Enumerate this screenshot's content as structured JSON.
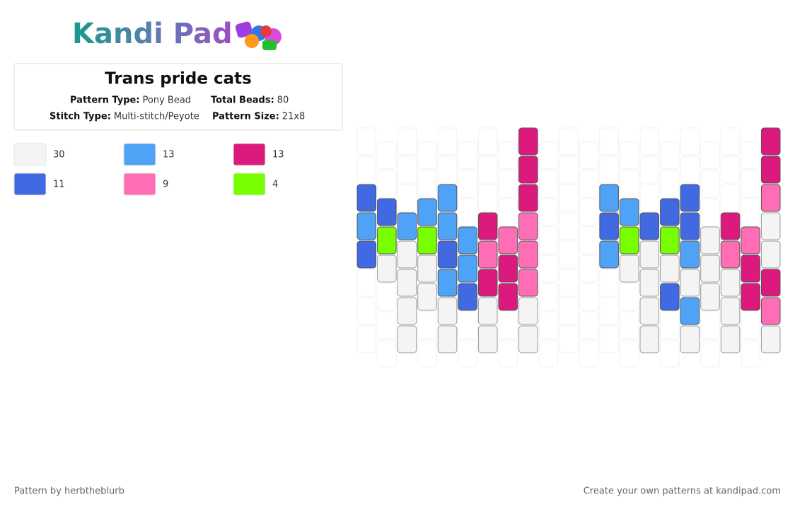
{
  "header": {
    "logo": "Kandi Pad",
    "title": "Trans pride cats"
  },
  "info": [
    {
      "label": "Pattern Type:",
      "value": "Pony Bead"
    },
    {
      "label": "Total Beads:",
      "value": "80"
    },
    {
      "label": "Stitch Type:",
      "value": "Multi-stitch/Peyote"
    },
    {
      "label": "Pattern Size:",
      "value": "21x8"
    }
  ],
  "palette": [
    {
      "color": "#f4f4f4",
      "count": 30
    },
    {
      "color": "#4fa3f7",
      "count": 13
    },
    {
      "color": "#dc1a7e",
      "count": 13
    },
    {
      "color": "#4169e1",
      "count": 11
    },
    {
      "color": "#ff6eb4",
      "count": 9
    },
    {
      "color": "#77ff00",
      "count": 4
    }
  ],
  "grid": {
    "columns": [
      [
        null,
        null,
        3,
        1,
        3,
        null,
        null,
        null
      ],
      [
        null,
        null,
        3,
        5,
        0,
        null,
        null,
        null
      ],
      [
        null,
        null,
        null,
        1,
        0,
        0,
        0,
        0
      ],
      [
        null,
        null,
        1,
        5,
        0,
        0,
        null,
        null
      ],
      [
        null,
        null,
        1,
        1,
        3,
        1,
        0,
        0
      ],
      [
        null,
        null,
        null,
        1,
        1,
        3,
        null,
        null
      ],
      [
        null,
        null,
        null,
        2,
        4,
        2,
        0,
        0
      ],
      [
        null,
        null,
        null,
        4,
        2,
        2,
        null,
        null
      ],
      [
        2,
        2,
        2,
        4,
        4,
        4,
        0,
        0
      ],
      [
        null,
        null,
        null,
        null,
        null,
        null,
        null,
        null
      ],
      [
        null,
        null,
        null,
        null,
        null,
        null,
        null,
        null
      ],
      [
        null,
        null,
        null,
        null,
        null,
        null,
        null,
        null
      ],
      [
        null,
        null,
        1,
        3,
        1,
        null,
        null,
        null
      ],
      [
        null,
        null,
        1,
        5,
        0,
        null,
        null,
        null
      ],
      [
        null,
        null,
        null,
        3,
        0,
        0,
        0,
        0
      ],
      [
        null,
        null,
        3,
        5,
        0,
        3,
        null,
        null
      ],
      [
        null,
        null,
        3,
        3,
        1,
        0,
        1,
        0
      ],
      [
        null,
        null,
        null,
        0,
        0,
        0,
        null,
        null
      ],
      [
        null,
        null,
        null,
        2,
        4,
        0,
        0,
        0
      ],
      [
        null,
        null,
        null,
        4,
        2,
        2,
        null,
        null
      ],
      [
        2,
        2,
        4,
        0,
        0,
        2,
        4,
        0
      ]
    ]
  },
  "footer": {
    "credit": "Pattern by herbtheblurb",
    "promo": "Create your own patterns at kandipad.com"
  }
}
